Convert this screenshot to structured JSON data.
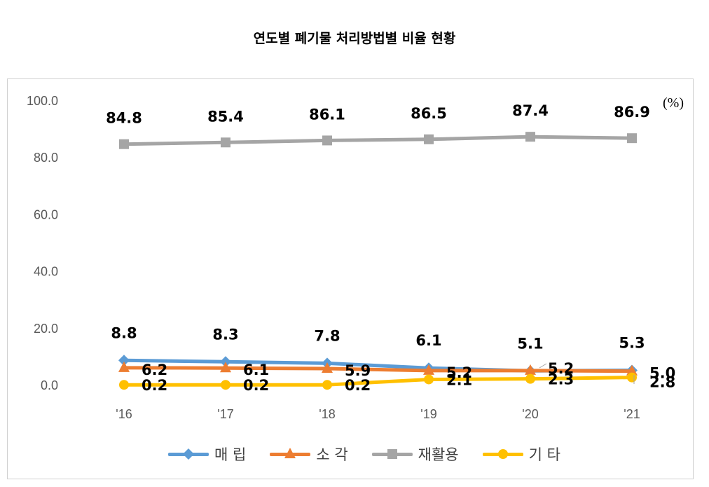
{
  "title": "연도별 폐기물 처리방법별 비율 현황",
  "unit": "(%)",
  "chart_data": {
    "type": "line",
    "title": "연도별 폐기물 처리방법별 비율 현황",
    "categories": [
      "'16",
      "'17",
      "'18",
      "'19",
      "'20",
      "'21"
    ],
    "ylim": [
      0,
      100
    ],
    "yticks": [
      "0.0",
      "20.0",
      "40.0",
      "60.0",
      "80.0",
      "100.0"
    ],
    "grid": false,
    "legend_position": "bottom",
    "series": [
      {
        "name": "매 립",
        "values": [
          8.8,
          8.3,
          7.8,
          6.1,
          5.1,
          5.3
        ],
        "labels": [
          "8.8",
          "8.3",
          "7.8",
          "6.1",
          "5.1",
          "5.3"
        ],
        "color": "#5B9BD5",
        "marker": "diamond"
      },
      {
        "name": "소 각",
        "values": [
          6.2,
          6.1,
          5.9,
          5.2,
          5.2,
          5.0
        ],
        "labels": [
          "6.2",
          "6.1",
          "5.9",
          "5.2",
          "5.2",
          "5.0"
        ],
        "color": "#ED7D31",
        "marker": "triangle"
      },
      {
        "name": "재활용",
        "values": [
          84.8,
          85.4,
          86.1,
          86.5,
          87.4,
          86.9
        ],
        "labels": [
          "84.8",
          "85.4",
          "86.1",
          "86.5",
          "87.4",
          "86.9"
        ],
        "color": "#A5A5A5",
        "marker": "square"
      },
      {
        "name": "기 타",
        "values": [
          0.2,
          0.2,
          0.2,
          2.1,
          2.3,
          2.8
        ],
        "labels": [
          "0.2",
          "0.2",
          "0.2",
          "2.1",
          "2.3",
          "2.8"
        ],
        "color": "#FFC000",
        "marker": "circle"
      }
    ]
  }
}
